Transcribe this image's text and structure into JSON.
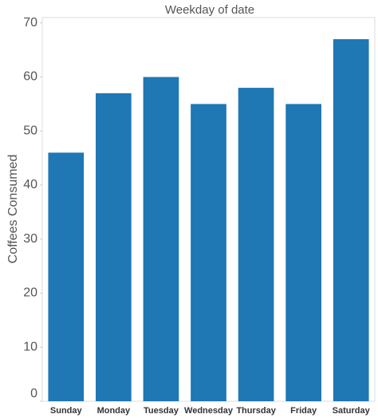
{
  "chart_data": {
    "type": "bar",
    "title": "Weekday of date",
    "y_label": "Coffees Consumed",
    "categories": [
      "Sunday",
      "Monday",
      "Tuesday",
      "Wednesday",
      "Thursday",
      "Friday",
      "Saturday"
    ],
    "values": [
      46,
      57,
      60,
      55,
      58,
      55,
      67
    ],
    "color": "#1f77b4",
    "ylim": [
      0,
      71
    ],
    "yticks": [
      0,
      10,
      20,
      30,
      40,
      50,
      60,
      70
    ],
    "grid": false
  }
}
